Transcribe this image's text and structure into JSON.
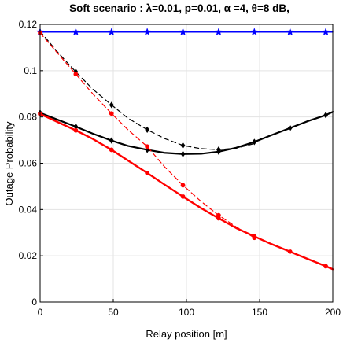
{
  "chart_data": {
    "type": "line",
    "title": "Soft scenario :  λ=0.01, p=0.01,  α =4, θ=8 dB,",
    "xlabel": "Relay position [m]",
    "ylabel": "Outage Probability",
    "xlim": [
      0,
      200
    ],
    "ylim": [
      0,
      0.12
    ],
    "xticks": [
      0,
      50,
      100,
      150,
      200
    ],
    "xtick_labels": [
      "0",
      "50",
      "100",
      "150",
      "200"
    ],
    "yticks": [
      0,
      0.02,
      0.04,
      0.06,
      0.08,
      0.1,
      0.12
    ],
    "ytick_labels": [
      "0",
      "0.02",
      "0.04",
      "0.06",
      "0.08",
      "0.1",
      "0.12"
    ],
    "grid": true,
    "series": [
      {
        "color": "#0000ff",
        "dashed": false,
        "marker": "star",
        "line_width": 1.5,
        "x": [
          0,
          200
        ],
        "y": [
          0.1167,
          0.1167
        ],
        "marker_x": [
          0,
          24.4,
          48.8,
          73.2,
          97.6,
          122,
          146.4,
          170.8,
          195.2
        ],
        "marker_y": [
          0.1167,
          0.1167,
          0.1167,
          0.1167,
          0.1167,
          0.1167,
          0.1167,
          0.1167,
          0.1167
        ]
      },
      {
        "color": "#000000",
        "dashed": true,
        "marker": "diamond",
        "line_width": 1.2,
        "x": [
          0,
          12,
          24.4,
          36,
          48.8,
          60,
          73.2,
          85,
          97.6,
          110,
          122,
          134,
          146.4
        ],
        "y": [
          0.117,
          0.108,
          0.0995,
          0.092,
          0.0852,
          0.0795,
          0.0745,
          0.0707,
          0.0677,
          0.0663,
          0.0659,
          0.0665,
          0.0685
        ],
        "marker_x": [
          24.4,
          48.8,
          73.2,
          97.6,
          122
        ],
        "marker_y": [
          0.0995,
          0.0852,
          0.0745,
          0.0677,
          0.0659
        ]
      },
      {
        "color": "#000000",
        "dashed": false,
        "marker": "diamond",
        "line_width": 2.2,
        "x": [
          0,
          12,
          24.4,
          36,
          48.8,
          60,
          73.2,
          85,
          97.6,
          110,
          122,
          134,
          146.4,
          158,
          170.8,
          183,
          195.2,
          200
        ],
        "y": [
          0.0818,
          0.0788,
          0.0758,
          0.0728,
          0.0698,
          0.0675,
          0.0658,
          0.0645,
          0.064,
          0.0641,
          0.065,
          0.0667,
          0.0692,
          0.0721,
          0.0752,
          0.0782,
          0.0808,
          0.0822
        ],
        "marker_x": [
          0,
          24.4,
          48.8,
          73.2,
          97.6,
          122,
          146.4,
          170.8,
          195.2
        ],
        "marker_y": [
          0.0818,
          0.0758,
          0.0698,
          0.0658,
          0.064,
          0.065,
          0.0692,
          0.0752,
          0.0808
        ]
      },
      {
        "color": "#ff0000",
        "dashed": true,
        "marker": "circle",
        "line_width": 1.2,
        "x": [
          0,
          12,
          24.4,
          36,
          48.8,
          60,
          73.2,
          85,
          97.6,
          110,
          122,
          134,
          146.4
        ],
        "y": [
          0.1163,
          0.1075,
          0.0985,
          0.09,
          0.0815,
          0.0745,
          0.0672,
          0.0585,
          0.0505,
          0.0435,
          0.0375,
          0.0325,
          0.0278
        ],
        "marker_x": [
          0,
          24.4,
          48.8,
          73.2,
          97.6,
          122,
          146.4
        ],
        "marker_y": [
          0.1163,
          0.0985,
          0.0815,
          0.0672,
          0.0505,
          0.0375,
          0.0278
        ]
      },
      {
        "color": "#ff0000",
        "dashed": false,
        "marker": "circle",
        "line_width": 2.4,
        "x": [
          0,
          12,
          24.4,
          36,
          48.8,
          60,
          73.2,
          85,
          97.6,
          110,
          122,
          134,
          146.4,
          158,
          170.8,
          183,
          195.2,
          200
        ],
        "y": [
          0.0813,
          0.0778,
          0.0742,
          0.0705,
          0.0658,
          0.0612,
          0.0558,
          0.0508,
          0.0456,
          0.0406,
          0.0362,
          0.032,
          0.0284,
          0.0251,
          0.0218,
          0.0186,
          0.0155,
          0.0142
        ],
        "marker_x": [
          0,
          24.4,
          48.8,
          73.2,
          97.6,
          122,
          146.4,
          170.8,
          195.2
        ],
        "marker_y": [
          0.0813,
          0.0742,
          0.0658,
          0.0558,
          0.0456,
          0.0362,
          0.0284,
          0.0218,
          0.0155
        ]
      }
    ]
  }
}
